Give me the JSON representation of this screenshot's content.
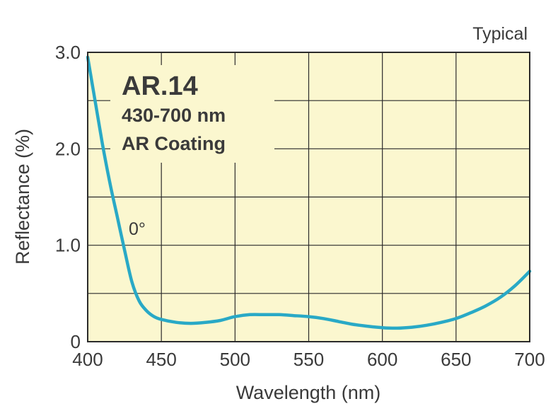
{
  "chart_data": {
    "type": "line",
    "title": "AR.14",
    "subtitle_lines": [
      "430-700 nm",
      "AR Coating"
    ],
    "corner_note": "Typical",
    "xlabel": "Wavelength (nm)",
    "ylabel": "Reflectance (%)",
    "xlim": [
      400,
      700
    ],
    "ylim": [
      0,
      3
    ],
    "x_ticks": [
      "400",
      "450",
      "500",
      "550",
      "600",
      "650",
      "700"
    ],
    "y_ticks": [
      "0",
      "1.0",
      "2.0",
      "3.0"
    ],
    "grid": true,
    "colors": {
      "plot_bg": "#fbf7cf",
      "line": "#29a9c6",
      "grid": "#2b2b2b"
    },
    "series": [
      {
        "name": "0°",
        "x": [
          400,
          405,
          410,
          415,
          420,
          425,
          430,
          435,
          440,
          445,
          450,
          460,
          470,
          480,
          490,
          500,
          510,
          520,
          530,
          540,
          550,
          560,
          570,
          580,
          590,
          600,
          610,
          620,
          630,
          640,
          650,
          660,
          670,
          680,
          690,
          700
        ],
        "values": [
          2.95,
          2.5,
          2.05,
          1.65,
          1.3,
          0.95,
          0.62,
          0.42,
          0.32,
          0.26,
          0.23,
          0.2,
          0.19,
          0.2,
          0.22,
          0.26,
          0.28,
          0.28,
          0.28,
          0.27,
          0.26,
          0.24,
          0.21,
          0.18,
          0.16,
          0.145,
          0.14,
          0.15,
          0.17,
          0.2,
          0.24,
          0.3,
          0.37,
          0.46,
          0.58,
          0.73
        ]
      }
    ]
  }
}
